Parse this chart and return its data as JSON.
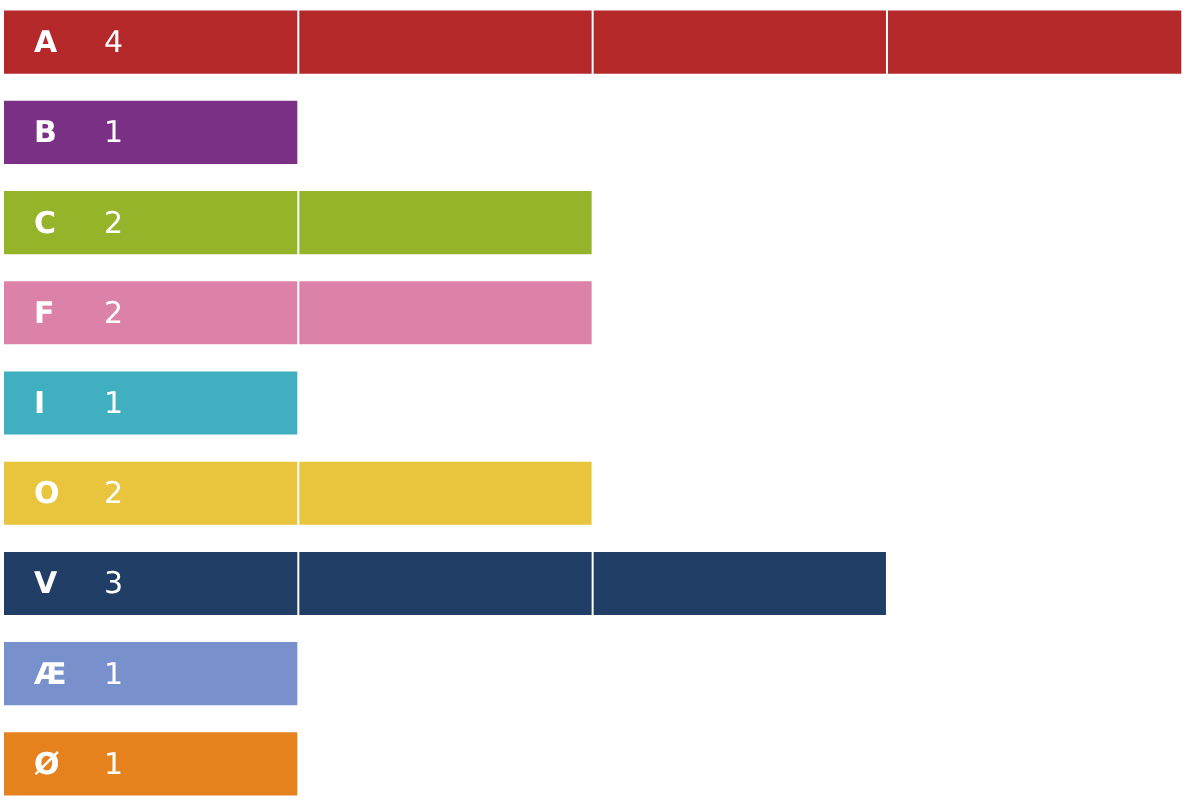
{
  "chart_data": {
    "type": "bar",
    "orientation": "horizontal",
    "categories": [
      "A",
      "B",
      "C",
      "F",
      "I",
      "O",
      "V",
      "Æ",
      "Ø"
    ],
    "values": [
      4,
      1,
      2,
      2,
      1,
      2,
      3,
      1,
      1
    ],
    "colors": [
      "#b5282a",
      "#7a3185",
      "#95b42a",
      "#dc82a8",
      "#40b0c0",
      "#e8c53c",
      "#213f66",
      "#7890cc",
      "#e5821e"
    ],
    "xlim": [
      0,
      4.05
    ],
    "xticks": [
      {
        "value": 1,
        "label": null
      },
      {
        "value": 2,
        "label": null
      },
      {
        "value": 3,
        "label": null
      }
    ],
    "grid": "x",
    "tick_labels": false,
    "data_labels": true
  }
}
